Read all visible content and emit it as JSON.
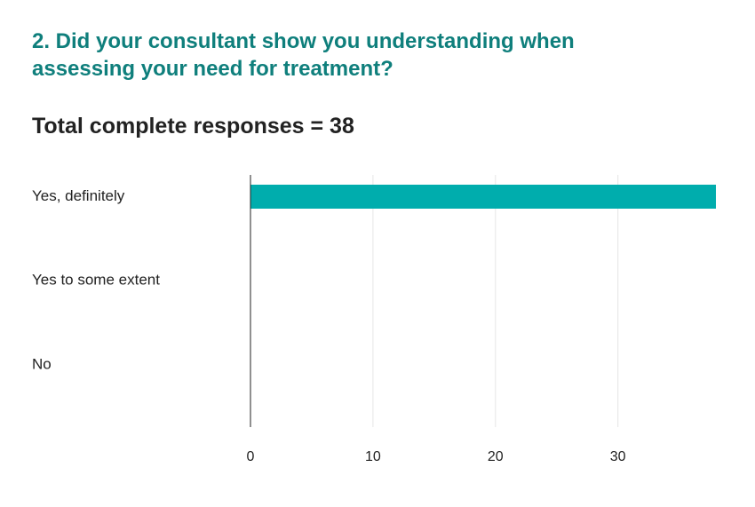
{
  "question": {
    "title_line1": "2. Did your consultant show you understanding when",
    "title_line2": "assessing your need for treatment?"
  },
  "summary": {
    "total_label": "Total complete responses = 38"
  },
  "colors": {
    "title": "#0f7f7c",
    "bar": "#00adad",
    "grid": "#e6e6e6",
    "axis": "#222222"
  },
  "chart_data": {
    "type": "bar",
    "orientation": "horizontal",
    "categories": [
      "Yes, definitely",
      "Yes to some extent",
      "No"
    ],
    "values": [
      38,
      0,
      0
    ],
    "xlim": [
      0,
      38
    ],
    "xticks": [
      0,
      10,
      20,
      30
    ],
    "grid": true
  }
}
